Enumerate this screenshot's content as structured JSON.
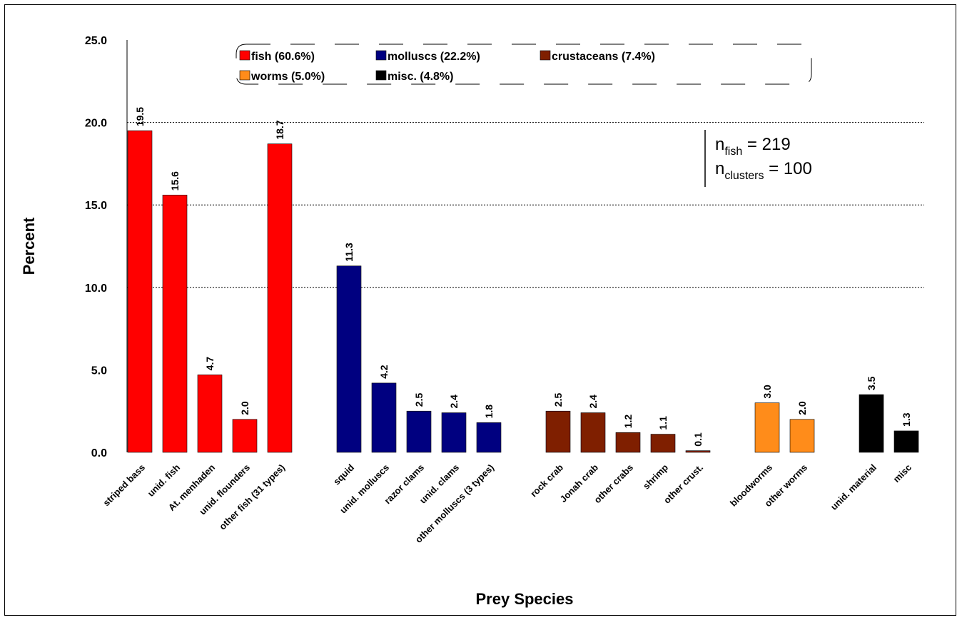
{
  "chart_data": {
    "type": "bar",
    "ylabel": "Percent",
    "xlabel": "Prey Species",
    "ylim": [
      0,
      25
    ],
    "yticks": [
      "0.0",
      "5.0",
      "10.0",
      "15.0",
      "20.0",
      "25.0"
    ],
    "grid": "horizontal dotted lines at 15, 20 and 10",
    "legend_placement": "top",
    "groups": [
      {
        "name": "fish (60.6%)",
        "color": "#ff0000",
        "categories": [
          "striped bass",
          "unid. fish",
          "At. menhaden",
          "unid. flounders",
          "other fish (31 types)"
        ],
        "values": [
          19.5,
          15.6,
          4.7,
          2.0,
          18.7
        ],
        "labels": [
          "19.5",
          "15.6",
          "4.7",
          "2.0",
          "18.7"
        ]
      },
      {
        "name": "molluscs (22.2%)",
        "color": "#000080",
        "categories": [
          "squid",
          "unid. molluscs",
          "razor clams",
          "unid. clams",
          "other molluscs (3 types)"
        ],
        "values": [
          11.3,
          4.2,
          2.5,
          2.4,
          1.8
        ],
        "labels": [
          "11.3",
          "4.2",
          "2.5",
          "2.4",
          "1.8"
        ]
      },
      {
        "name": "crustaceans (7.4%)",
        "color": "#7f1f00",
        "categories": [
          "rock crab",
          "Jonah crab",
          "other crabs",
          "shrimp",
          "other crust."
        ],
        "values": [
          2.5,
          2.4,
          1.2,
          1.1,
          0.1
        ],
        "labels": [
          "2.5",
          "2.4",
          "1.2",
          "1.1",
          "0.1"
        ]
      },
      {
        "name": "worms (5.0%)",
        "color": "#ff8c1a",
        "categories": [
          "bloodworms",
          "other worms"
        ],
        "values": [
          3.0,
          2.0
        ],
        "labels": [
          "3.0",
          "2.0"
        ]
      },
      {
        "name": "misc. (4.8%)",
        "color": "#000000",
        "categories": [
          "unid. material",
          "misc"
        ],
        "values": [
          3.5,
          1.3
        ],
        "labels": [
          "3.5",
          "1.3"
        ]
      }
    ],
    "annotation": {
      "line1_main": "n",
      "line1_sub": "fish",
      "line1_rest": " = 219",
      "line2_main": "n",
      "line2_sub": "clusters",
      "line2_rest": " = 100"
    }
  }
}
